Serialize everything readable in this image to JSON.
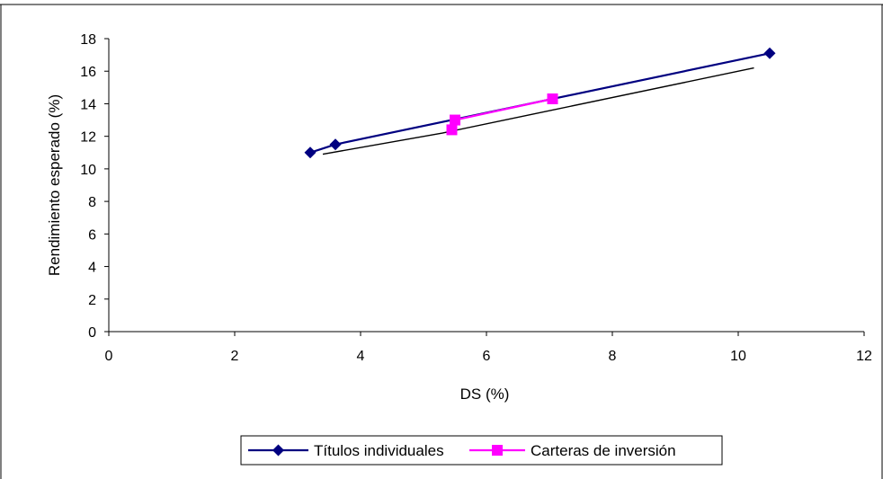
{
  "chart_data": {
    "type": "line",
    "title": "",
    "xlabel": "DS (%)",
    "ylabel": "Rendimiento esperado (%)",
    "xlim": [
      0,
      12
    ],
    "ylim": [
      0,
      18
    ],
    "xticks": [
      0,
      2,
      4,
      6,
      8,
      10,
      12
    ],
    "yticks": [
      0,
      2,
      4,
      6,
      8,
      10,
      12,
      14,
      16,
      18
    ],
    "grid": false,
    "legend_position": "bottom",
    "series": [
      {
        "name": "Títulos individuales",
        "color": "#000080",
        "marker": "diamond",
        "points": [
          {
            "x": 3.2,
            "y": 11.0
          },
          {
            "x": 3.6,
            "y": 11.5
          },
          {
            "x": 10.5,
            "y": 17.1
          }
        ]
      },
      {
        "name": "Carteras de inversión",
        "color": "#ff00ff",
        "marker": "square",
        "points": [
          {
            "x": 5.45,
            "y": 12.4
          },
          {
            "x": 5.5,
            "y": 13.0
          },
          {
            "x": 7.05,
            "y": 14.3
          }
        ]
      },
      {
        "color": "#000000",
        "marker": "none",
        "points": [
          {
            "x": 3.4,
            "y": 10.9
          },
          {
            "x": 5.3,
            "y": 12.2
          },
          {
            "x": 10.25,
            "y": 16.2
          }
        ]
      }
    ]
  }
}
